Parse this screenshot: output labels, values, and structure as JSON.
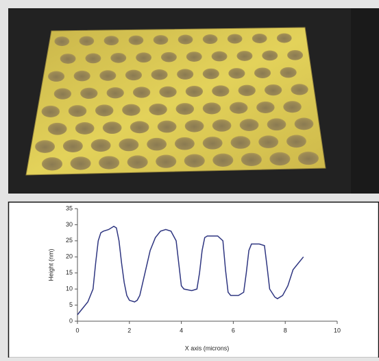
{
  "chart_data": {
    "type": "line",
    "x_label": "X axis (microns)",
    "y_label": "Height (nm)",
    "x": [
      0,
      0.2,
      0.4,
      0.6,
      0.7,
      0.8,
      0.9,
      1.0,
      1.2,
      1.4,
      1.5,
      1.6,
      1.7,
      1.8,
      1.9,
      2.0,
      2.2,
      2.3,
      2.4,
      2.6,
      2.8,
      3.0,
      3.2,
      3.4,
      3.6,
      3.8,
      3.9,
      4.0,
      4.1,
      4.4,
      4.6,
      4.7,
      4.8,
      4.9,
      5.0,
      5.4,
      5.6,
      5.7,
      5.8,
      5.9,
      6.2,
      6.4,
      6.5,
      6.6,
      6.7,
      7.0,
      7.2,
      7.3,
      7.4,
      7.6,
      7.7,
      7.9,
      8.1,
      8.3,
      8.5,
      8.7
    ],
    "series": [
      {
        "color": "#2e3580",
        "values": [
          2,
          4,
          6,
          10,
          18,
          25,
          27.5,
          28,
          28.5,
          29.5,
          29,
          25,
          18,
          12,
          8,
          6.5,
          6,
          6.5,
          8,
          15,
          22,
          26,
          28,
          28.5,
          28,
          25,
          18,
          11,
          10,
          9.5,
          10,
          15,
          22,
          26,
          26.5,
          26.5,
          25,
          16,
          9,
          8,
          8,
          9,
          15,
          22,
          24,
          24,
          23.5,
          17,
          10,
          7.5,
          7,
          8,
          11,
          16,
          18,
          20
        ]
      }
    ],
    "xlim": [
      0,
      10
    ],
    "xticks": [
      0,
      2,
      4,
      6,
      8,
      10
    ],
    "ylim": [
      0,
      35
    ],
    "yticks": [
      0,
      5,
      10,
      15,
      20,
      25,
      30,
      35
    ]
  }
}
